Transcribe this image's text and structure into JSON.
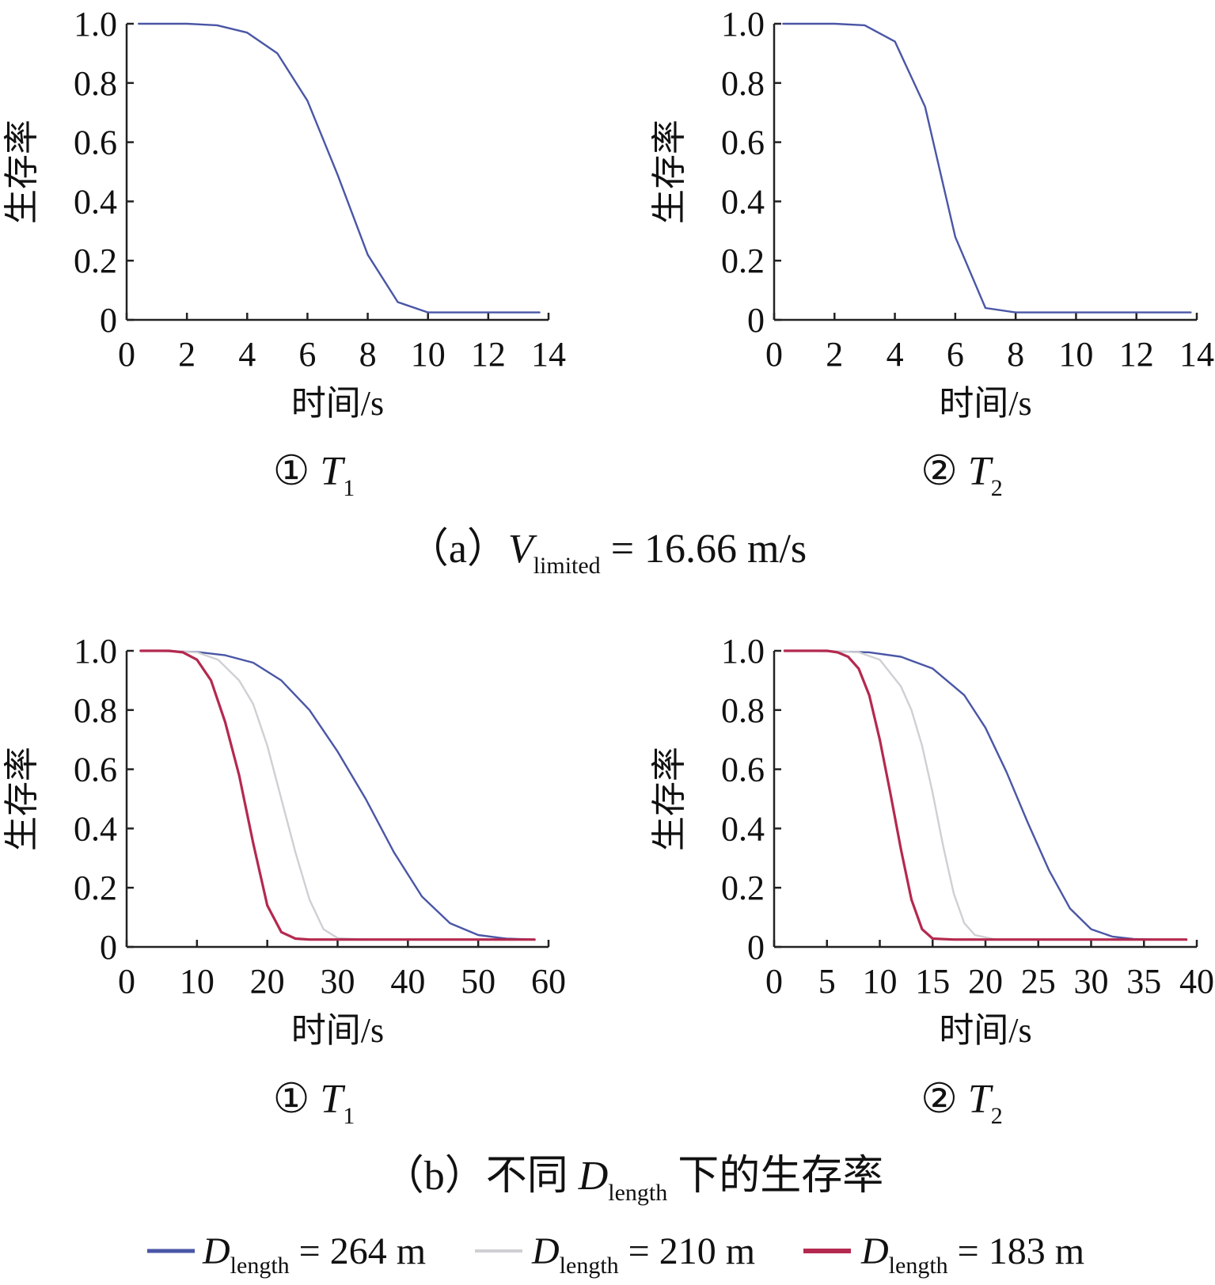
{
  "figure": {
    "caption_a": {
      "prefix": "（a）",
      "var": "V",
      "sub": "limited",
      "suffix": " = 16.66 m/s"
    },
    "caption_b": {
      "prefix": "（b）不同 ",
      "var": "D",
      "sub": "length",
      "suffix": " 下的生存率"
    },
    "legend": [
      {
        "var": "D",
        "sub": "length",
        "suffix": " = 264 m",
        "color": "#4a56a6"
      },
      {
        "var": "D",
        "sub": "length",
        "suffix": " = 210 m",
        "color": "#cfcfd4"
      },
      {
        "var": "D",
        "sub": "length",
        "suffix": " = 183 m",
        "color": "#b4294f"
      }
    ]
  },
  "chart_data": [
    {
      "id": "a1",
      "type": "line",
      "panel_label": {
        "circle": "①",
        "var": "T",
        "sub": "1"
      },
      "xlabel": "时间/s",
      "ylabel": "生存率",
      "xlim": [
        0,
        14
      ],
      "ylim": [
        0,
        1
      ],
      "xticks": [
        "0",
        "2",
        "4",
        "6",
        "8",
        "10",
        "12",
        "14"
      ],
      "xtick_values": [
        0,
        2,
        4,
        6,
        8,
        10,
        12,
        14
      ],
      "yticks": [
        "0",
        "0.2",
        "0.4",
        "0.6",
        "0.8",
        "1.0"
      ],
      "ytick_values": [
        0,
        0.2,
        0.4,
        0.6,
        0.8,
        1.0
      ],
      "series": [
        {
          "color": "#4a56a6",
          "x": [
            0.4,
            1,
            2,
            3,
            4,
            5,
            6,
            7,
            8,
            9,
            10,
            11,
            12,
            13,
            13.7
          ],
          "y": [
            1.0,
            1.0,
            1.0,
            0.995,
            0.97,
            0.9,
            0.74,
            0.49,
            0.22,
            0.06,
            0.025,
            0.025,
            0.025,
            0.025,
            0.025
          ]
        }
      ]
    },
    {
      "id": "a2",
      "type": "line",
      "panel_label": {
        "circle": "②",
        "var": "T",
        "sub": "2"
      },
      "xlabel": "时间/s",
      "ylabel": "生存率",
      "xlim": [
        0,
        14
      ],
      "ylim": [
        0,
        1
      ],
      "xticks": [
        "0",
        "2",
        "4",
        "6",
        "8",
        "10",
        "12",
        "14"
      ],
      "xtick_values": [
        0,
        2,
        4,
        6,
        8,
        10,
        12,
        14
      ],
      "yticks": [
        "0",
        "0.2",
        "0.4",
        "0.6",
        "0.8",
        "1.0"
      ],
      "ytick_values": [
        0,
        0.2,
        0.4,
        0.6,
        0.8,
        1.0
      ],
      "series": [
        {
          "color": "#4a56a6",
          "x": [
            0.3,
            1,
            2,
            3,
            4,
            5,
            6,
            7,
            8,
            9,
            10,
            11,
            12,
            13,
            13.8
          ],
          "y": [
            1.0,
            1.0,
            1.0,
            0.995,
            0.94,
            0.72,
            0.28,
            0.04,
            0.025,
            0.025,
            0.025,
            0.025,
            0.025,
            0.025,
            0.025
          ]
        }
      ]
    },
    {
      "id": "b1",
      "type": "line",
      "panel_label": {
        "circle": "①",
        "var": "T",
        "sub": "1"
      },
      "xlabel": "时间/s",
      "ylabel": "生存率",
      "xlim": [
        0,
        60
      ],
      "ylim": [
        0,
        1
      ],
      "xticks": [
        "0",
        "10",
        "20",
        "30",
        "40",
        "50",
        "60"
      ],
      "xtick_values": [
        0,
        10,
        20,
        30,
        40,
        50,
        60
      ],
      "yticks": [
        "0",
        "0.2",
        "0.4",
        "0.6",
        "0.8",
        "1.0"
      ],
      "ytick_values": [
        0,
        0.2,
        0.4,
        0.6,
        0.8,
        1.0
      ],
      "series": [
        {
          "color": "#4a56a6",
          "x": [
            2,
            6,
            10,
            14,
            18,
            22,
            26,
            30,
            34,
            38,
            42,
            46,
            50,
            54,
            58
          ],
          "y": [
            1.0,
            0.999,
            0.996,
            0.985,
            0.96,
            0.9,
            0.8,
            0.66,
            0.5,
            0.32,
            0.17,
            0.08,
            0.04,
            0.028,
            0.025
          ]
        },
        {
          "color": "#cfcfd4",
          "x": [
            2,
            6,
            10,
            13,
            16,
            18,
            20,
            22,
            24,
            26,
            28,
            30,
            34,
            40,
            50,
            58
          ],
          "y": [
            1.0,
            1.0,
            0.995,
            0.97,
            0.9,
            0.82,
            0.68,
            0.5,
            0.32,
            0.16,
            0.06,
            0.03,
            0.025,
            0.025,
            0.025,
            0.025
          ]
        },
        {
          "color": "#b4294f",
          "x": [
            2,
            6,
            8,
            10,
            12,
            14,
            16,
            18,
            20,
            22,
            24,
            26,
            30,
            40,
            50,
            58
          ],
          "y": [
            1.0,
            1.0,
            0.995,
            0.97,
            0.9,
            0.76,
            0.58,
            0.35,
            0.14,
            0.05,
            0.028,
            0.025,
            0.025,
            0.025,
            0.025,
            0.025
          ]
        }
      ]
    },
    {
      "id": "b2",
      "type": "line",
      "panel_label": {
        "circle": "②",
        "var": "T",
        "sub": "2"
      },
      "xlabel": "时间/s",
      "ylabel": "生存率",
      "xlim": [
        0,
        40
      ],
      "ylim": [
        0,
        1
      ],
      "xticks": [
        "0",
        "5",
        "10",
        "15",
        "20",
        "25",
        "30",
        "35",
        "40"
      ],
      "xtick_values": [
        0,
        5,
        10,
        15,
        20,
        25,
        30,
        35,
        40
      ],
      "yticks": [
        "0",
        "0.2",
        "0.4",
        "0.6",
        "0.8",
        "1.0"
      ],
      "ytick_values": [
        0,
        0.2,
        0.4,
        0.6,
        0.8,
        1.0
      ],
      "series": [
        {
          "color": "#4a56a6",
          "x": [
            1,
            5,
            9,
            12,
            15,
            18,
            20,
            22,
            24,
            26,
            28,
            30,
            32,
            34,
            36,
            39
          ],
          "y": [
            1.0,
            0.999,
            0.995,
            0.98,
            0.94,
            0.85,
            0.74,
            0.59,
            0.42,
            0.26,
            0.13,
            0.06,
            0.035,
            0.027,
            0.025,
            0.025
          ]
        },
        {
          "color": "#cfcfd4",
          "x": [
            1,
            5,
            8,
            10,
            12,
            13,
            14,
            15,
            16,
            17,
            18,
            19,
            21,
            25,
            30,
            39
          ],
          "y": [
            1.0,
            1.0,
            0.995,
            0.97,
            0.88,
            0.8,
            0.68,
            0.52,
            0.34,
            0.18,
            0.08,
            0.04,
            0.025,
            0.025,
            0.025,
            0.025
          ]
        },
        {
          "color": "#b4294f",
          "x": [
            1,
            5,
            6,
            7,
            8,
            9,
            10,
            11,
            12,
            13,
            14,
            15,
            17,
            20,
            30,
            39
          ],
          "y": [
            1.0,
            1.0,
            0.995,
            0.98,
            0.94,
            0.85,
            0.7,
            0.52,
            0.33,
            0.16,
            0.06,
            0.028,
            0.025,
            0.025,
            0.025,
            0.025
          ]
        }
      ]
    }
  ]
}
